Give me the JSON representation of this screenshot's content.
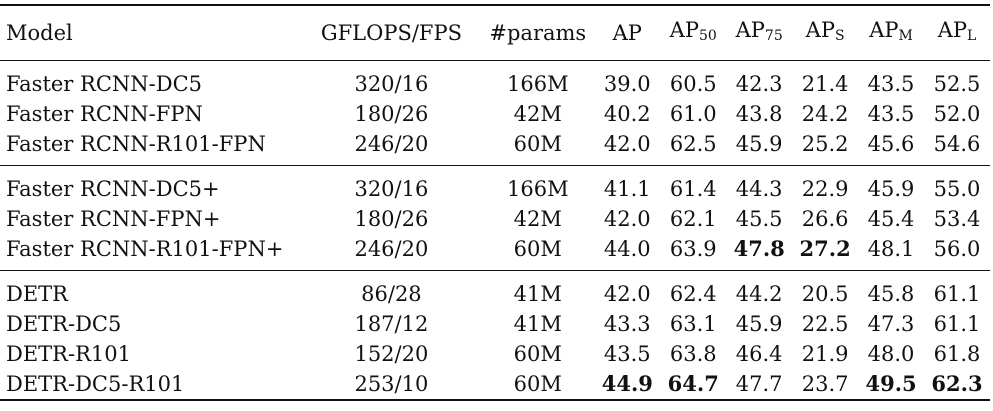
{
  "columns": {
    "model": "Model",
    "flops": "GFLOPS/FPS",
    "params": "#params",
    "ap": "AP",
    "ap50": {
      "main": "AP",
      "sub": "50"
    },
    "ap75": {
      "main": "AP",
      "sub": "75"
    },
    "aps": {
      "main": "AP",
      "sub": "S"
    },
    "apm": {
      "main": "AP",
      "sub": "M"
    },
    "apl": {
      "main": "AP",
      "sub": "L"
    }
  },
  "rows": [
    {
      "model": "Faster RCNN-DC5",
      "flops": "320/16",
      "params": "166M",
      "ap": "39.0",
      "ap50": "60.5",
      "ap75": "42.3",
      "aps": "21.4",
      "apm": "43.5",
      "apl": "52.5"
    },
    {
      "model": "Faster RCNN-FPN",
      "flops": "180/26",
      "params": "42M",
      "ap": "40.2",
      "ap50": "61.0",
      "ap75": "43.8",
      "aps": "24.2",
      "apm": "43.5",
      "apl": "52.0"
    },
    {
      "model": "Faster RCNN-R101-FPN",
      "flops": "246/20",
      "params": "60M",
      "ap": "42.0",
      "ap50": "62.5",
      "ap75": "45.9",
      "aps": "25.2",
      "apm": "45.6",
      "apl": "54.6"
    },
    {
      "model": "Faster RCNN-DC5+",
      "flops": "320/16",
      "params": "166M",
      "ap": "41.1",
      "ap50": "61.4",
      "ap75": "44.3",
      "aps": "22.9",
      "apm": "45.9",
      "apl": "55.0"
    },
    {
      "model": "Faster RCNN-FPN+",
      "flops": "180/26",
      "params": "42M",
      "ap": "42.0",
      "ap50": "62.1",
      "ap75": "45.5",
      "aps": "26.6",
      "apm": "45.4",
      "apl": "53.4"
    },
    {
      "model": "Faster RCNN-R101-FPN+",
      "flops": "246/20",
      "params": "60M",
      "ap": "44.0",
      "ap50": "63.9",
      "ap75": "47.8",
      "aps": "27.2",
      "apm": "48.1",
      "apl": "56.0"
    },
    {
      "model": "DETR",
      "flops": "86/28",
      "params": "41M",
      "ap": "42.0",
      "ap50": "62.4",
      "ap75": "44.2",
      "aps": "20.5",
      "apm": "45.8",
      "apl": "61.1"
    },
    {
      "model": "DETR-DC5",
      "flops": "187/12",
      "params": "41M",
      "ap": "43.3",
      "ap50": "63.1",
      "ap75": "45.9",
      "aps": "22.5",
      "apm": "47.3",
      "apl": "61.1"
    },
    {
      "model": "DETR-R101",
      "flops": "152/20",
      "params": "60M",
      "ap": "43.5",
      "ap50": "63.8",
      "ap75": "46.4",
      "aps": "21.9",
      "apm": "48.0",
      "apl": "61.8"
    },
    {
      "model": "DETR-DC5-R101",
      "flops": "253/10",
      "params": "60M",
      "ap": "44.9",
      "ap50": "64.7",
      "ap75": "47.7",
      "aps": "23.7",
      "apm": "49.5",
      "apl": "62.3"
    }
  ],
  "bold_cells": [
    "5.ap75",
    "5.aps",
    "9.ap",
    "9.ap50",
    "9.apm",
    "9.apl"
  ]
}
